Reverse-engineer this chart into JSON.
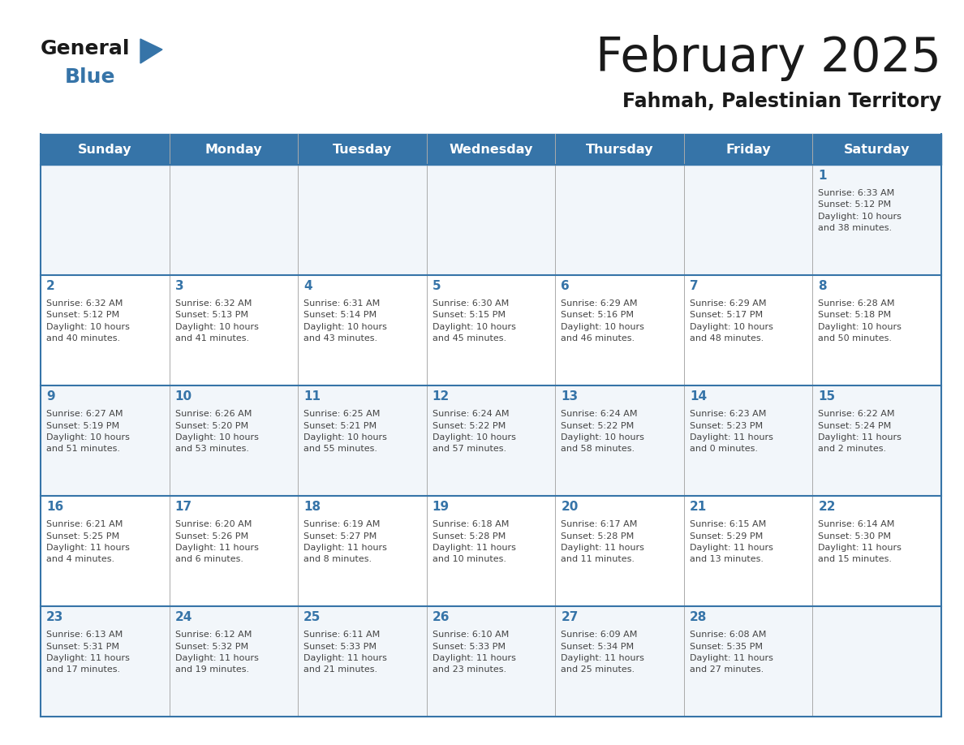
{
  "title": "February 2025",
  "subtitle": "Fahmah, Palestinian Territory",
  "days_of_week": [
    "Sunday",
    "Monday",
    "Tuesday",
    "Wednesday",
    "Thursday",
    "Friday",
    "Saturday"
  ],
  "header_bg": "#3674a8",
  "header_text": "#ffffff",
  "bg_color": "#ffffff",
  "row_bg_even": "#f2f6fa",
  "row_bg_odd": "#ffffff",
  "day_number_color": "#3674a8",
  "info_text_color": "#444444",
  "border_color": "#3674a8",
  "separator_color": "#cccccc",
  "calendar_data": [
    [
      null,
      null,
      null,
      null,
      null,
      null,
      {
        "day": 1,
        "sunrise": "6:33 AM",
        "sunset": "5:12 PM",
        "daylight": "10 hours and 38 minutes."
      }
    ],
    [
      {
        "day": 2,
        "sunrise": "6:32 AM",
        "sunset": "5:12 PM",
        "daylight": "10 hours and 40 minutes."
      },
      {
        "day": 3,
        "sunrise": "6:32 AM",
        "sunset": "5:13 PM",
        "daylight": "10 hours and 41 minutes."
      },
      {
        "day": 4,
        "sunrise": "6:31 AM",
        "sunset": "5:14 PM",
        "daylight": "10 hours and 43 minutes."
      },
      {
        "day": 5,
        "sunrise": "6:30 AM",
        "sunset": "5:15 PM",
        "daylight": "10 hours and 45 minutes."
      },
      {
        "day": 6,
        "sunrise": "6:29 AM",
        "sunset": "5:16 PM",
        "daylight": "10 hours and 46 minutes."
      },
      {
        "day": 7,
        "sunrise": "6:29 AM",
        "sunset": "5:17 PM",
        "daylight": "10 hours and 48 minutes."
      },
      {
        "day": 8,
        "sunrise": "6:28 AM",
        "sunset": "5:18 PM",
        "daylight": "10 hours and 50 minutes."
      }
    ],
    [
      {
        "day": 9,
        "sunrise": "6:27 AM",
        "sunset": "5:19 PM",
        "daylight": "10 hours and 51 minutes."
      },
      {
        "day": 10,
        "sunrise": "6:26 AM",
        "sunset": "5:20 PM",
        "daylight": "10 hours and 53 minutes."
      },
      {
        "day": 11,
        "sunrise": "6:25 AM",
        "sunset": "5:21 PM",
        "daylight": "10 hours and 55 minutes."
      },
      {
        "day": 12,
        "sunrise": "6:24 AM",
        "sunset": "5:22 PM",
        "daylight": "10 hours and 57 minutes."
      },
      {
        "day": 13,
        "sunrise": "6:24 AM",
        "sunset": "5:22 PM",
        "daylight": "10 hours and 58 minutes."
      },
      {
        "day": 14,
        "sunrise": "6:23 AM",
        "sunset": "5:23 PM",
        "daylight": "11 hours and 0 minutes."
      },
      {
        "day": 15,
        "sunrise": "6:22 AM",
        "sunset": "5:24 PM",
        "daylight": "11 hours and 2 minutes."
      }
    ],
    [
      {
        "day": 16,
        "sunrise": "6:21 AM",
        "sunset": "5:25 PM",
        "daylight": "11 hours and 4 minutes."
      },
      {
        "day": 17,
        "sunrise": "6:20 AM",
        "sunset": "5:26 PM",
        "daylight": "11 hours and 6 minutes."
      },
      {
        "day": 18,
        "sunrise": "6:19 AM",
        "sunset": "5:27 PM",
        "daylight": "11 hours and 8 minutes."
      },
      {
        "day": 19,
        "sunrise": "6:18 AM",
        "sunset": "5:28 PM",
        "daylight": "11 hours and 10 minutes."
      },
      {
        "day": 20,
        "sunrise": "6:17 AM",
        "sunset": "5:28 PM",
        "daylight": "11 hours and 11 minutes."
      },
      {
        "day": 21,
        "sunrise": "6:15 AM",
        "sunset": "5:29 PM",
        "daylight": "11 hours and 13 minutes."
      },
      {
        "day": 22,
        "sunrise": "6:14 AM",
        "sunset": "5:30 PM",
        "daylight": "11 hours and 15 minutes."
      }
    ],
    [
      {
        "day": 23,
        "sunrise": "6:13 AM",
        "sunset": "5:31 PM",
        "daylight": "11 hours and 17 minutes."
      },
      {
        "day": 24,
        "sunrise": "6:12 AM",
        "sunset": "5:32 PM",
        "daylight": "11 hours and 19 minutes."
      },
      {
        "day": 25,
        "sunrise": "6:11 AM",
        "sunset": "5:33 PM",
        "daylight": "11 hours and 21 minutes."
      },
      {
        "day": 26,
        "sunrise": "6:10 AM",
        "sunset": "5:33 PM",
        "daylight": "11 hours and 23 minutes."
      },
      {
        "day": 27,
        "sunrise": "6:09 AM",
        "sunset": "5:34 PM",
        "daylight": "11 hours and 25 minutes."
      },
      {
        "day": 28,
        "sunrise": "6:08 AM",
        "sunset": "5:35 PM",
        "daylight": "11 hours and 27 minutes."
      },
      null
    ]
  ]
}
